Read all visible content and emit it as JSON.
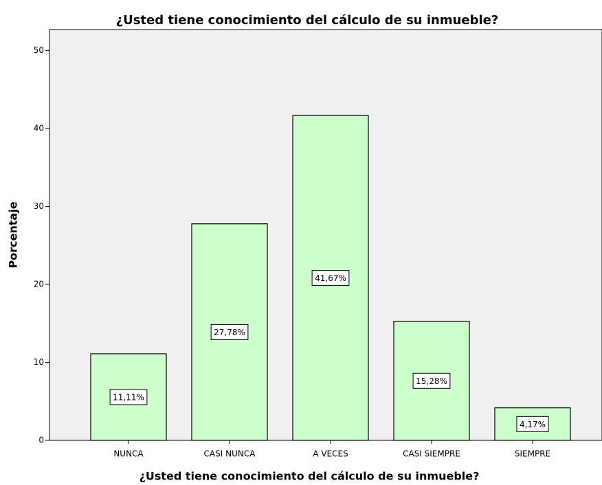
{
  "chart_data": {
    "type": "bar",
    "title": "¿Usted tiene conocimiento del cálculo de su inmueble?",
    "x_label": "¿Usted tiene conocimiento del cálculo de su inmueble?",
    "y_label": "Porcentaje",
    "categories": [
      "NUNCA",
      "CASI NUNCA",
      "A VECES",
      "CASI SIEMPRE",
      "SIEMPRE"
    ],
    "values": [
      11.11,
      27.78,
      41.67,
      15.28,
      4.17
    ],
    "value_labels": [
      "11,11%",
      "27,78%",
      "41,67%",
      "15,28%",
      "4,17%"
    ],
    "color": "#ccffcc",
    "ylim": [
      0,
      52.7
    ],
    "yticks": [
      0,
      10,
      20,
      30,
      40,
      50
    ],
    "grid": false
  }
}
